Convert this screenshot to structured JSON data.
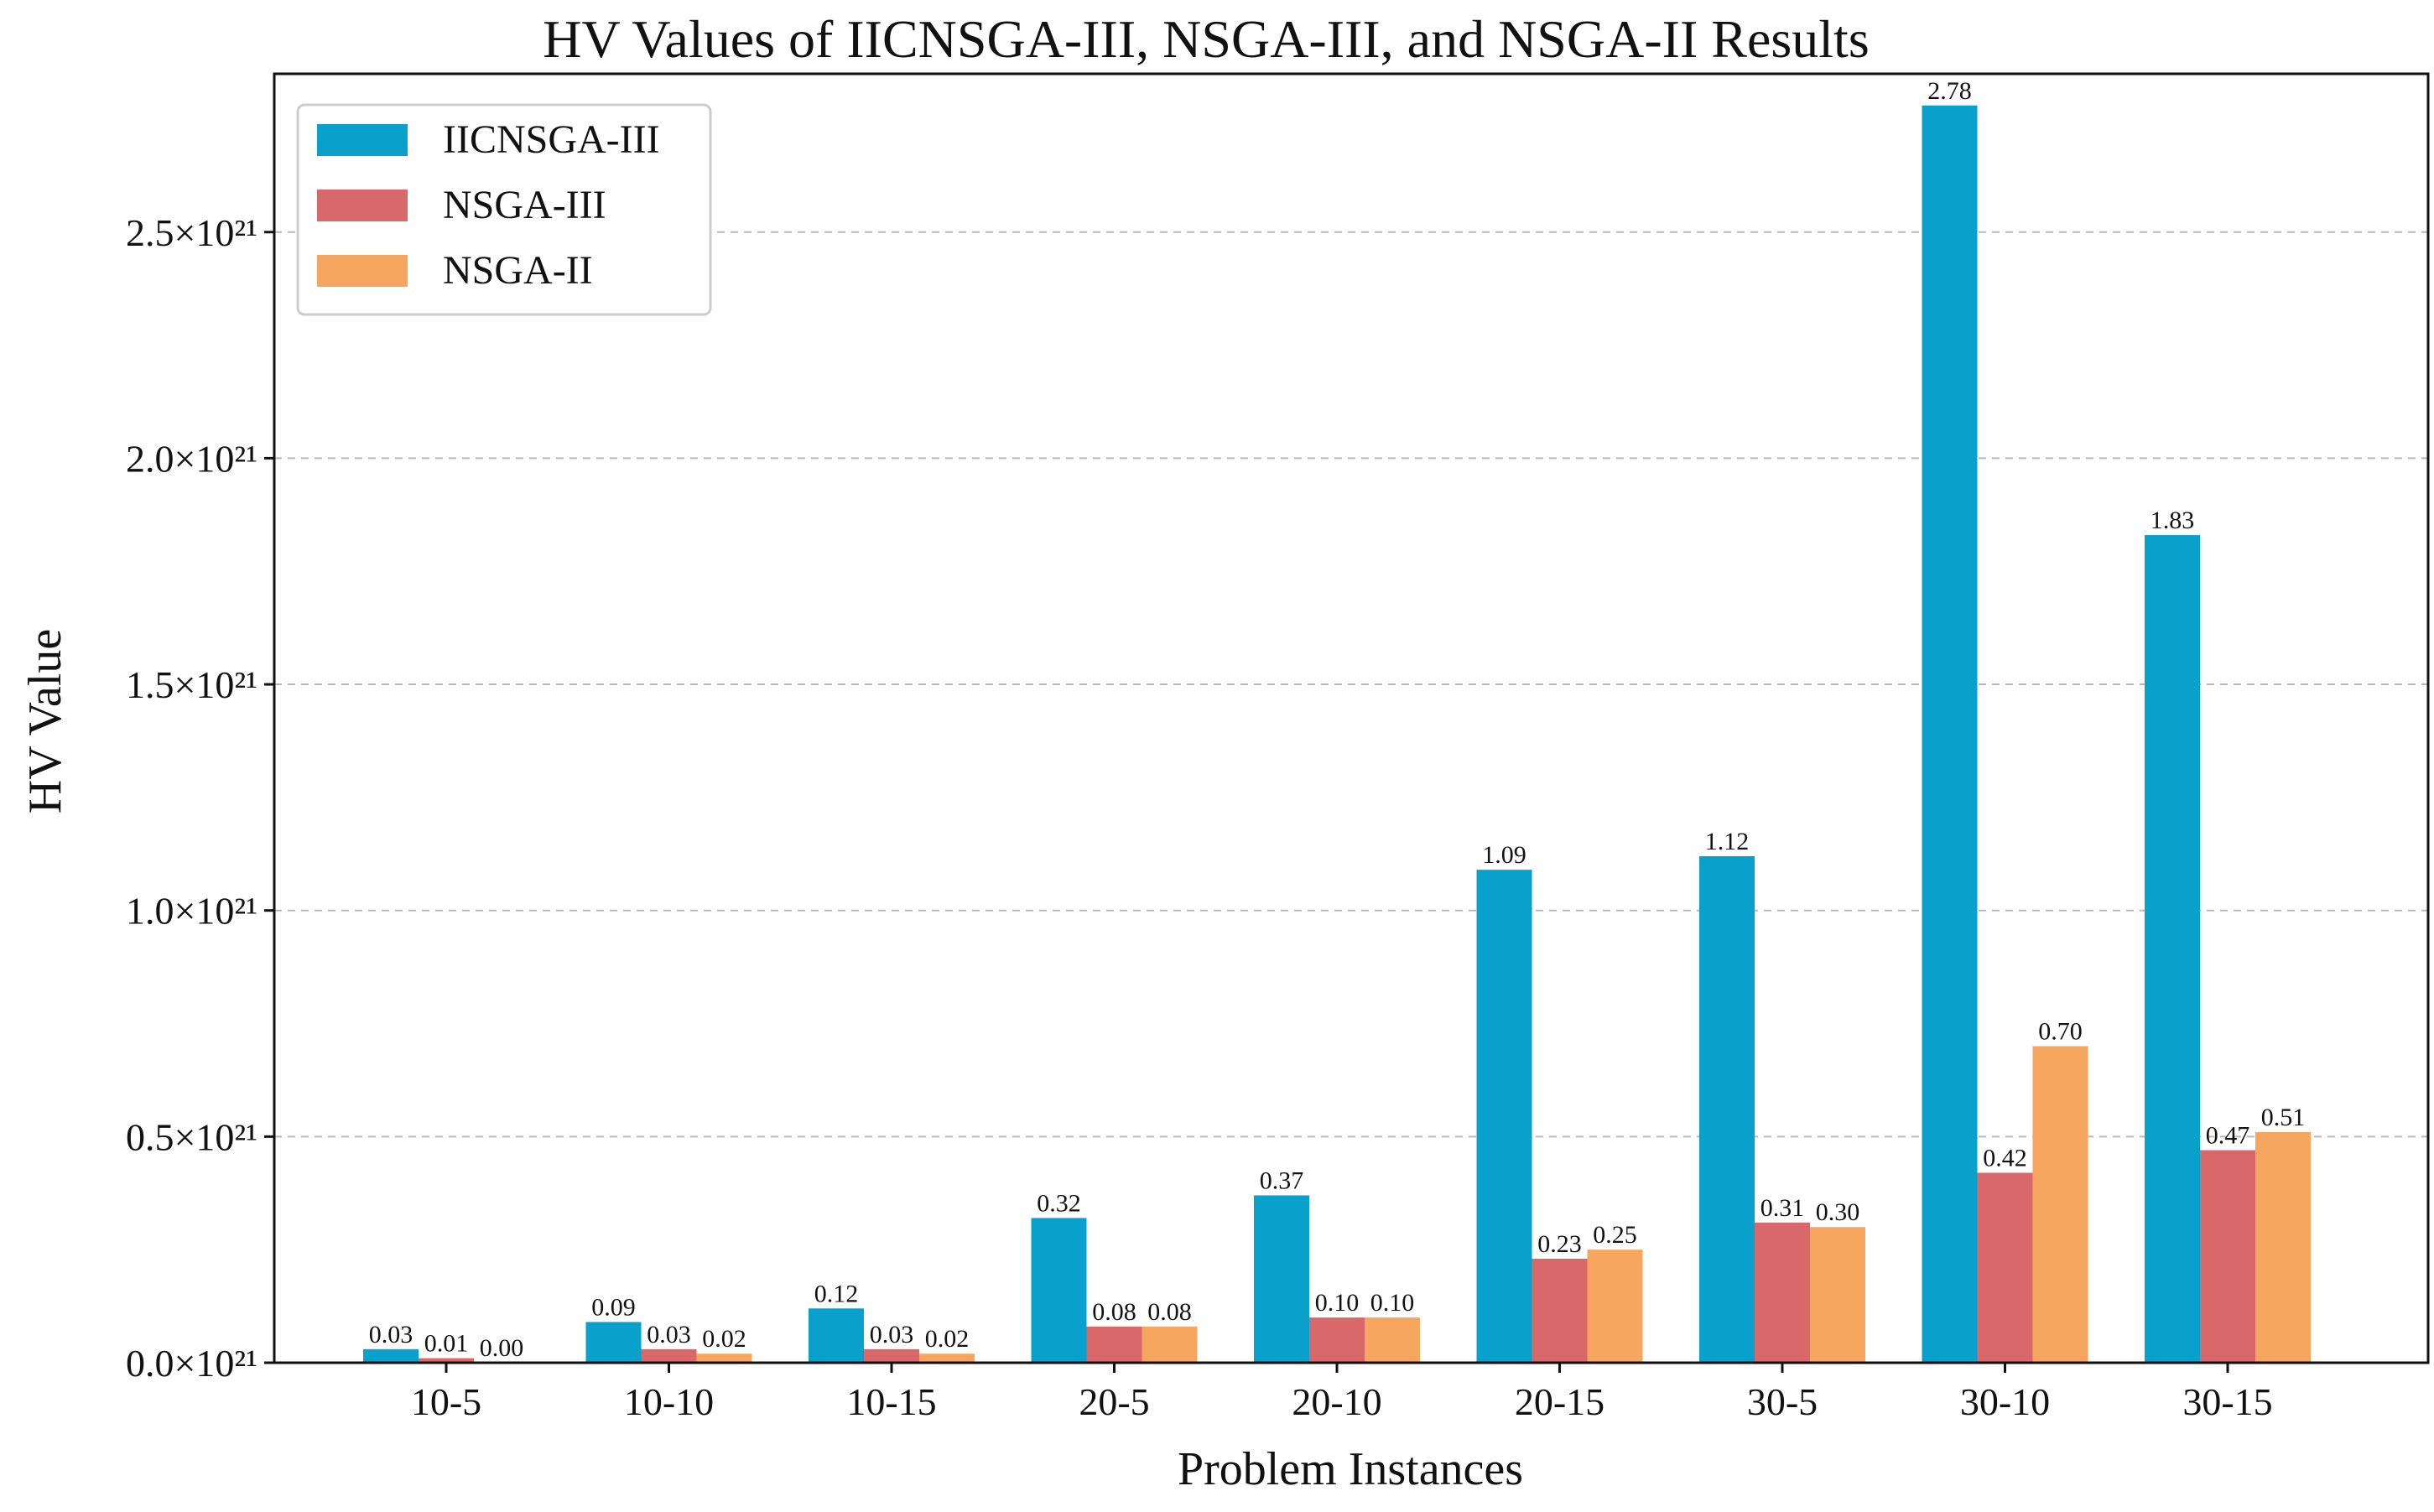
{
  "chart_data": {
    "type": "bar",
    "title": "HV Values of IICNSGA-III, NSGA-III, and NSGA-II Results",
    "xlabel": "Problem Instances",
    "ylabel": "HV Value",
    "categories": [
      "10-5",
      "10-10",
      "10-15",
      "20-5",
      "20-10",
      "20-15",
      "30-5",
      "30-10",
      "30-15"
    ],
    "series": [
      {
        "name": "IICNSGA-III",
        "color": "#0aa0cc",
        "values": [
          0.03,
          0.09,
          0.12,
          0.32,
          0.37,
          1.09,
          1.12,
          2.78,
          1.83
        ],
        "labels": [
          "0.03",
          "0.09",
          "0.12",
          "0.32",
          "0.37",
          "1.09",
          "1.12",
          "2.78",
          "1.83"
        ]
      },
      {
        "name": "NSGA-III",
        "color": "#d9686a",
        "values": [
          0.01,
          0.03,
          0.03,
          0.08,
          0.1,
          0.23,
          0.31,
          0.42,
          0.47
        ],
        "labels": [
          "0.01",
          "0.03",
          "0.03",
          "0.08",
          "0.10",
          "0.23",
          "0.31",
          "0.42",
          "0.47"
        ]
      },
      {
        "name": "NSGA-II",
        "color": "#f7a660",
        "values": [
          0.0,
          0.02,
          0.02,
          0.08,
          0.1,
          0.25,
          0.3,
          0.7,
          0.51
        ],
        "labels": [
          "0.00",
          "0.02",
          "0.02",
          "0.08",
          "0.10",
          "0.25",
          "0.30",
          "0.70",
          "0.51"
        ]
      }
    ],
    "ylim": [
      0,
      2.85
    ],
    "yticks": [
      0.0,
      0.5,
      1.0,
      1.5,
      2.0,
      2.5
    ],
    "ytick_labels": [
      "0.0×10²¹",
      "0.5×10²¹",
      "1.0×10²¹",
      "1.5×10²¹",
      "2.0×10²¹",
      "2.5×10²¹"
    ],
    "grid": "y-dashed",
    "legend_position": "top-left"
  }
}
